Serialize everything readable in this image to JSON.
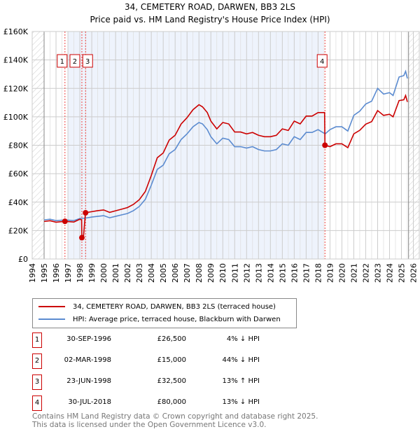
{
  "title": "34, CEMETERY ROAD, DARWEN, BB3 2LS",
  "subtitle": "Price paid vs. HM Land Registry's House Price Index (HPI)",
  "chart_data": {
    "type": "line",
    "xlim": [
      1994,
      2026.5
    ],
    "ylim": [
      0,
      160000
    ],
    "yticks": [
      0,
      20000,
      40000,
      60000,
      80000,
      100000,
      120000,
      140000,
      160000
    ],
    "ytick_labels": [
      "£0",
      "£20K",
      "£40K",
      "£60K",
      "£80K",
      "£100K",
      "£120K",
      "£140K",
      "£160K"
    ],
    "xticks": [
      1994,
      1995,
      1996,
      1997,
      1998,
      1999,
      2000,
      2001,
      2002,
      2003,
      2004,
      2005,
      2006,
      2007,
      2008,
      2009,
      2010,
      2011,
      2012,
      2013,
      2014,
      2015,
      2016,
      2017,
      2018,
      2019,
      2020,
      2021,
      2022,
      2023,
      2024,
      2025,
      2026
    ],
    "grid": true,
    "shaded_range": [
      1997.0,
      2018.45
    ],
    "series": [
      {
        "name": "34, CEMETERY ROAD, DARWEN, BB3 2LS (terraced house)",
        "color": "#cc0000",
        "x": [
          1995,
          1995.5,
          1996,
          1996.75,
          1997.5,
          1998.0,
          1998.15,
          1998.17,
          1998.3,
          1998.47,
          1999,
          1999.5,
          2000,
          2000.5,
          2001,
          2001.5,
          2002,
          2002.5,
          2003,
          2003.5,
          2004,
          2004.5,
          2005,
          2005.5,
          2006,
          2006.5,
          2007,
          2007.5,
          2008,
          2008.3,
          2008.7,
          2009,
          2009.5,
          2010,
          2010.5,
          2011,
          2011.5,
          2012,
          2012.5,
          2013,
          2013.5,
          2014,
          2014.5,
          2015,
          2015.5,
          2016,
          2016.5,
          2017,
          2017.5,
          2018,
          2018.55,
          2018.58,
          2019,
          2019.5,
          2020,
          2020.5,
          2021,
          2021.5,
          2022,
          2022.5,
          2023,
          2023.5,
          2024,
          2024.3,
          2024.8,
          2025.2,
          2025.35,
          2025.5
        ],
        "y": [
          26400,
          26900,
          25900,
          26500,
          26000,
          28000,
          27500,
          15000,
          15000,
          32500,
          33300,
          34000,
          34500,
          32800,
          33900,
          35000,
          36200,
          38400,
          41800,
          47500,
          58800,
          71200,
          74600,
          83600,
          87000,
          94900,
          99400,
          105000,
          108500,
          107000,
          103000,
          97000,
          91500,
          96000,
          95000,
          89300,
          89300,
          88000,
          89000,
          87000,
          86000,
          86000,
          87000,
          91500,
          90400,
          97000,
          95000,
          100500,
          100500,
          103000,
          103000,
          80000,
          79000,
          81000,
          81000,
          78300,
          88000,
          90500,
          94800,
          96600,
          104400,
          101000,
          101800,
          100000,
          111400,
          112000,
          115000,
          110500
        ]
      },
      {
        "name": "HPI: Average price, terraced house, Blackburn with Darwen",
        "color": "#5b8bd0",
        "x": [
          1995,
          1995.5,
          1996,
          1996.75,
          1997.5,
          1998,
          1998.5,
          1999,
          1999.5,
          2000,
          2000.5,
          2001,
          2001.5,
          2002,
          2002.5,
          2003,
          2003.5,
          2004,
          2004.5,
          2005,
          2005.5,
          2006,
          2006.5,
          2007,
          2007.5,
          2008,
          2008.3,
          2008.7,
          2009,
          2009.5,
          2010,
          2010.5,
          2011,
          2011.5,
          2012,
          2012.5,
          2013,
          2013.5,
          2014,
          2014.5,
          2015,
          2015.5,
          2016,
          2016.5,
          2017,
          2017.5,
          2018,
          2018.6,
          2019,
          2019.5,
          2020,
          2020.5,
          2021,
          2021.5,
          2022,
          2022.5,
          2023,
          2023.5,
          2024,
          2024.3,
          2024.8,
          2025.2,
          2025.35,
          2025.5
        ],
        "y": [
          27500,
          28000,
          27000,
          27500,
          27000,
          28500,
          28800,
          29500,
          30000,
          30500,
          29000,
          30000,
          31000,
          32000,
          34000,
          37000,
          42000,
          52000,
          63000,
          66000,
          74000,
          77000,
          84000,
          88000,
          93000,
          96000,
          95000,
          91000,
          86000,
          81000,
          85000,
          84000,
          79000,
          79000,
          78000,
          79000,
          77000,
          76000,
          76000,
          77000,
          81000,
          80000,
          86000,
          84000,
          89000,
          89000,
          91000,
          88000,
          91000,
          93000,
          93000,
          90000,
          101000,
          104000,
          109000,
          111000,
          120000,
          116000,
          117000,
          115000,
          128000,
          129000,
          132000,
          127000
        ]
      }
    ],
    "sales": [
      {
        "n": "1",
        "x": 1996.75,
        "y": 26500
      },
      {
        "n": "2",
        "x": 1998.17,
        "y": 15000
      },
      {
        "n": "3",
        "x": 1998.48,
        "y": 32500
      },
      {
        "n": "4",
        "x": 2018.58,
        "y": 80000
      }
    ]
  },
  "legend": {
    "property": "34, CEMETERY ROAD, DARWEN, BB3 2LS (terraced house)",
    "hpi": "HPI: Average price, terraced house, Blackburn with Darwen"
  },
  "table": [
    {
      "n": "1",
      "date": "30-SEP-1996",
      "price": "£26,500",
      "hpi": "4% ↓ HPI"
    },
    {
      "n": "2",
      "date": "02-MAR-1998",
      "price": "£15,000",
      "hpi": "44% ↓ HPI"
    },
    {
      "n": "3",
      "date": "23-JUN-1998",
      "price": "£32,500",
      "hpi": "13% ↑ HPI"
    },
    {
      "n": "4",
      "date": "30-JUL-2018",
      "price": "£80,000",
      "hpi": "13% ↓ HPI"
    }
  ],
  "footer": [
    "Contains HM Land Registry data © Crown copyright and database right 2025.",
    "This data is licensed under the Open Government Licence v3.0."
  ]
}
